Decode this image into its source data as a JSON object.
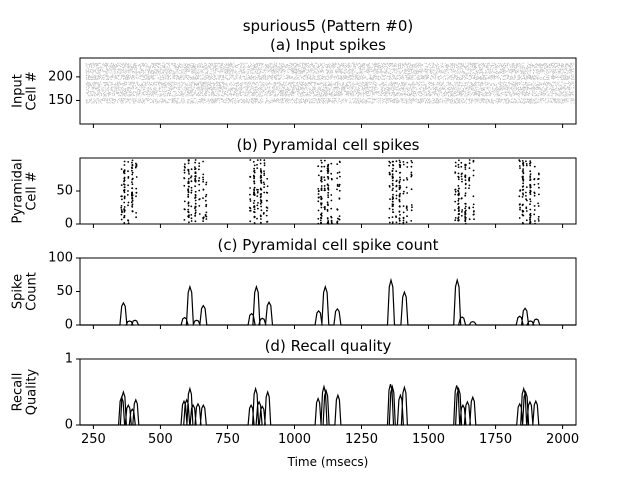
{
  "chart_data": [
    {
      "type": "scatter",
      "figure_title": "spurious5 (Pattern #0)",
      "title": "(a) Input spikes",
      "ylabel": "Input\nCell #",
      "xlim": [
        200,
        2050
      ],
      "ylim": [
        100,
        240
      ],
      "yticks": [
        150,
        200
      ],
      "tick_labels": [
        "150",
        "200"
      ],
      "series": [
        {
          "description_bands": [
            [
              145,
              155
            ],
            [
              160,
              170
            ],
            [
              172,
              180
            ],
            [
              182,
              190
            ],
            [
              195,
              205
            ],
            [
              208,
              218
            ],
            [
              220,
              230
            ]
          ],
          "marker_color": "#bbbbbb",
          "x_range": [
            220,
            2040
          ]
        }
      ]
    },
    {
      "type": "scatter",
      "title": "(b) Pyramidal cell spikes",
      "ylabel": "Pyramidal\nCell #",
      "xlim": [
        200,
        2050
      ],
      "ylim": [
        0,
        100
      ],
      "yticks": [
        0,
        50
      ],
      "tick_labels": [
        "0",
        "50"
      ],
      "bursts": [
        {
          "x": [
            355,
            365,
            380,
            395,
            410
          ]
        },
        {
          "x": [
            590,
            605,
            615,
            630,
            645,
            660,
            670
          ]
        },
        {
          "x": [
            835,
            850,
            862,
            875,
            887,
            898
          ]
        },
        {
          "x": [
            1090,
            1100,
            1112,
            1125,
            1138,
            1160,
            1168
          ]
        },
        {
          "x": [
            1355,
            1367,
            1380,
            1393,
            1407,
            1420,
            1437
          ]
        },
        {
          "x": [
            1600,
            1612,
            1624,
            1638,
            1652,
            1668
          ]
        },
        {
          "x": [
            1840,
            1852,
            1865,
            1880,
            1896,
            1910
          ]
        }
      ]
    },
    {
      "type": "line",
      "title": "(c) Pyramidal cell spike count",
      "ylabel": "Spike\nCount",
      "xlim": [
        200,
        2050
      ],
      "ylim": [
        0,
        100
      ],
      "yticks": [
        0,
        50,
        100
      ],
      "tick_labels": [
        "0",
        "50",
        "100"
      ],
      "peaks": [
        {
          "x": 362,
          "y": 33
        },
        {
          "x": 385,
          "y": 6
        },
        {
          "x": 405,
          "y": 7
        },
        {
          "x": 590,
          "y": 11
        },
        {
          "x": 610,
          "y": 57
        },
        {
          "x": 635,
          "y": 7
        },
        {
          "x": 660,
          "y": 29
        },
        {
          "x": 840,
          "y": 17
        },
        {
          "x": 858,
          "y": 57
        },
        {
          "x": 880,
          "y": 10
        },
        {
          "x": 905,
          "y": 34
        },
        {
          "x": 1090,
          "y": 21
        },
        {
          "x": 1115,
          "y": 57
        },
        {
          "x": 1160,
          "y": 24
        },
        {
          "x": 1360,
          "y": 67
        },
        {
          "x": 1410,
          "y": 49
        },
        {
          "x": 1607,
          "y": 67
        },
        {
          "x": 1625,
          "y": 12
        },
        {
          "x": 1665,
          "y": 5
        },
        {
          "x": 1840,
          "y": 13
        },
        {
          "x": 1860,
          "y": 25
        },
        {
          "x": 1880,
          "y": 6
        },
        {
          "x": 1902,
          "y": 9
        }
      ]
    },
    {
      "type": "line",
      "title": "(d) Recall quality",
      "ylabel": "Recall\nQuality",
      "xlabel": "Time (msecs)",
      "xlim": [
        200,
        2050
      ],
      "ylim": [
        0,
        1
      ],
      "yticks": [
        0,
        1
      ],
      "tick_labels": [
        "0",
        "1"
      ],
      "xticks": [
        250,
        500,
        750,
        1000,
        1250,
        1500,
        1750,
        2000
      ],
      "xtick_labels": [
        "250",
        "500",
        "750",
        "1000",
        "1250",
        "1500",
        "1750",
        "2000"
      ],
      "peaks": [
        {
          "x": 355,
          "y": 0.42
        },
        {
          "x": 362,
          "y": 0.5
        },
        {
          "x": 380,
          "y": 0.3
        },
        {
          "x": 395,
          "y": 0.24
        },
        {
          "x": 408,
          "y": 0.38
        },
        {
          "x": 588,
          "y": 0.36
        },
        {
          "x": 598,
          "y": 0.38
        },
        {
          "x": 610,
          "y": 0.55
        },
        {
          "x": 622,
          "y": 0.3
        },
        {
          "x": 640,
          "y": 0.32
        },
        {
          "x": 660,
          "y": 0.3
        },
        {
          "x": 838,
          "y": 0.3
        },
        {
          "x": 855,
          "y": 0.55
        },
        {
          "x": 868,
          "y": 0.35
        },
        {
          "x": 880,
          "y": 0.28
        },
        {
          "x": 900,
          "y": 0.5
        },
        {
          "x": 1088,
          "y": 0.4
        },
        {
          "x": 1110,
          "y": 0.58
        },
        {
          "x": 1118,
          "y": 0.52
        },
        {
          "x": 1162,
          "y": 0.45
        },
        {
          "x": 1358,
          "y": 0.62
        },
        {
          "x": 1365,
          "y": 0.58
        },
        {
          "x": 1395,
          "y": 0.45
        },
        {
          "x": 1410,
          "y": 0.57
        },
        {
          "x": 1605,
          "y": 0.6
        },
        {
          "x": 1612,
          "y": 0.55
        },
        {
          "x": 1628,
          "y": 0.3
        },
        {
          "x": 1645,
          "y": 0.35
        },
        {
          "x": 1665,
          "y": 0.42
        },
        {
          "x": 1840,
          "y": 0.32
        },
        {
          "x": 1855,
          "y": 0.55
        },
        {
          "x": 1862,
          "y": 0.5
        },
        {
          "x": 1878,
          "y": 0.35
        },
        {
          "x": 1900,
          "y": 0.36
        }
      ]
    }
  ]
}
